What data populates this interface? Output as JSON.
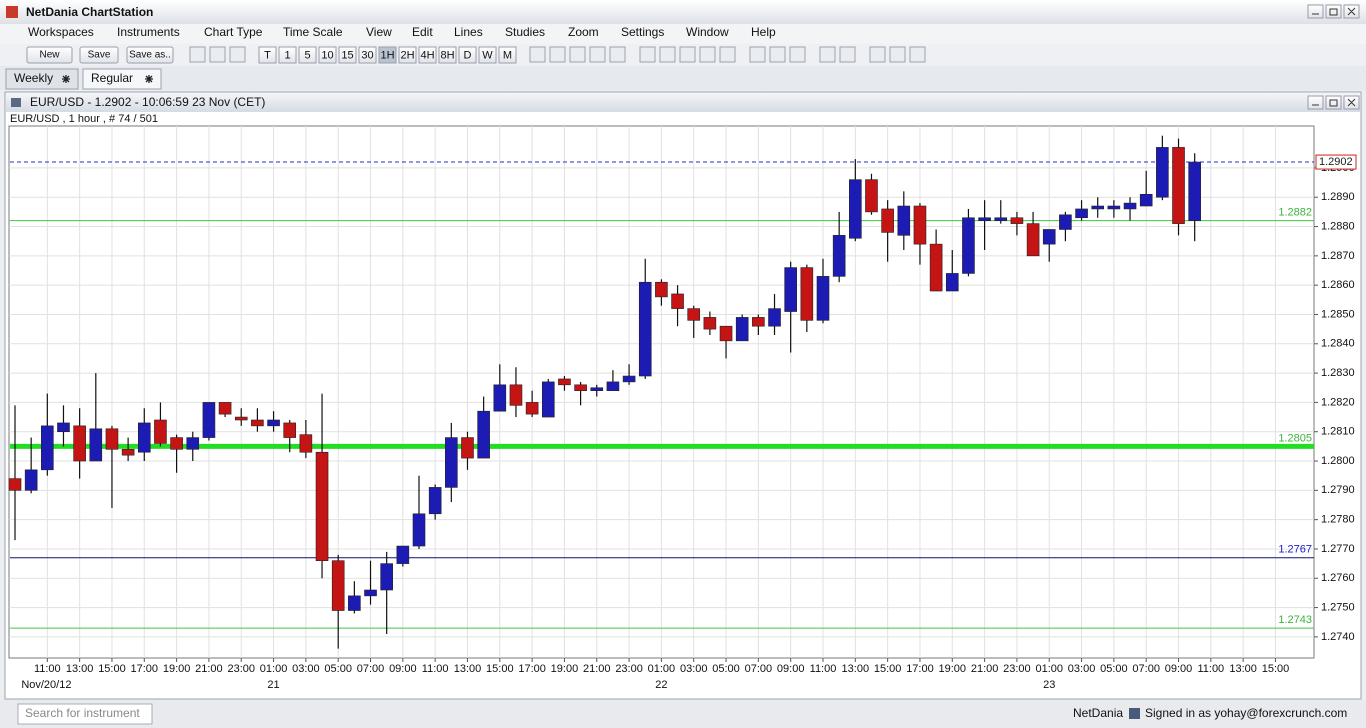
{
  "app": {
    "title": "NetDania ChartStation",
    "menu": [
      "Workspaces",
      "Instruments",
      "Chart Type",
      "Time Scale",
      "View",
      "Edit",
      "Lines",
      "Studies",
      "Zoom",
      "Settings",
      "Window",
      "Help"
    ],
    "buttons": [
      "New",
      "Save",
      "Save as.."
    ],
    "timeframes": [
      "T",
      "1",
      "5",
      "10",
      "15",
      "30",
      "1H",
      "2H",
      "4H",
      "8H",
      "D",
      "W",
      "M"
    ],
    "active_timeframe_index": 6,
    "tabs": [
      "Weekly",
      "Regular"
    ],
    "active_tab_index": 1,
    "status": {
      "search_placeholder": "Search for instrument",
      "brand": "NetDania",
      "signed_in": "Signed in as yohay@forexcrunch.com"
    }
  },
  "chart_data": {
    "type": "candlestick",
    "title": "EUR/USD - 1.2902 - 10:06:59  23 Nov (CET)",
    "subtitle": "EUR/USD , 1 hour , # 74 / 501",
    "up_color": "#1c1cb4",
    "down_color": "#c41414",
    "grid": true,
    "open": [
      1.2794,
      1.279,
      1.2797,
      1.281,
      1.2812,
      1.28,
      1.2811,
      1.2804,
      1.2803,
      1.2814,
      1.2808,
      1.2804,
      1.2808,
      1.282,
      1.2815,
      1.2814,
      1.2812,
      1.2813,
      1.2809,
      1.2803,
      1.2766,
      1.2749,
      1.2754,
      1.2756,
      1.2765,
      1.2771,
      1.2782,
      1.2791,
      1.2808,
      1.2801,
      1.2817,
      1.2826,
      1.282,
      1.2815,
      1.2828,
      1.2826,
      1.2824,
      1.2824,
      1.2827,
      1.2829,
      1.2861,
      1.2857,
      1.2852,
      1.2849,
      1.2846,
      1.2841,
      1.2849,
      1.2846,
      1.2851,
      1.2866,
      1.2848,
      1.2863,
      1.2876,
      1.2896,
      1.2886,
      1.2877,
      1.2887,
      1.2874,
      1.2858,
      1.2864,
      1.2882,
      1.2882,
      1.2883,
      1.2881,
      1.2874,
      1.2879,
      1.2883,
      1.2886,
      1.2886,
      1.2886,
      1.2887,
      1.289,
      1.2907,
      1.2882
    ],
    "high": [
      1.2819,
      1.2808,
      1.2823,
      1.2819,
      1.2818,
      1.283,
      1.2812,
      1.2808,
      1.2818,
      1.282,
      1.2809,
      1.281,
      1.282,
      1.282,
      1.2818,
      1.2818,
      1.2817,
      1.2814,
      1.2814,
      1.2823,
      1.2768,
      1.2759,
      1.2766,
      1.2769,
      1.2771,
      1.2795,
      1.2792,
      1.2813,
      1.281,
      1.2822,
      1.2833,
      1.2832,
      1.2824,
      1.2828,
      1.2829,
      1.2827,
      1.2826,
      1.2831,
      1.2833,
      1.2869,
      1.2862,
      1.286,
      1.2853,
      1.2851,
      1.2846,
      1.285,
      1.285,
      1.2857,
      1.2868,
      1.2867,
      1.2869,
      1.2885,
      1.2903,
      1.2898,
      1.2889,
      1.2892,
      1.2888,
      1.2879,
      1.2872,
      1.2886,
      1.2889,
      1.2889,
      1.2885,
      1.2885,
      1.2879,
      1.2885,
      1.2889,
      1.289,
      1.2889,
      1.289,
      1.2899,
      1.2911,
      1.291,
      1.2905
    ],
    "low": [
      1.2773,
      1.2789,
      1.2795,
      1.2805,
      1.2794,
      1.28,
      1.2784,
      1.28,
      1.28,
      1.2805,
      1.2796,
      1.28,
      1.2807,
      1.2815,
      1.2812,
      1.281,
      1.281,
      1.2803,
      1.2801,
      1.276,
      1.2736,
      1.2748,
      1.2751,
      1.2741,
      1.2764,
      1.277,
      1.278,
      1.2786,
      1.2797,
      1.2801,
      1.2817,
      1.2815,
      1.2815,
      1.2815,
      1.2824,
      1.2819,
      1.2822,
      1.2824,
      1.2826,
      1.2828,
      1.2853,
      1.2846,
      1.2842,
      1.2843,
      1.2835,
      1.2841,
      1.2843,
      1.2843,
      1.2837,
      1.2844,
      1.2847,
      1.2861,
      1.2875,
      1.2884,
      1.2868,
      1.2872,
      1.2867,
      1.2858,
      1.2858,
      1.2863,
      1.2872,
      1.2881,
      1.2877,
      1.287,
      1.2868,
      1.2875,
      1.2882,
      1.2883,
      1.2883,
      1.2882,
      1.2887,
      1.2889,
      1.2877,
      1.2875
    ],
    "close": [
      1.279,
      1.2797,
      1.2812,
      1.2813,
      1.28,
      1.2811,
      1.2804,
      1.2802,
      1.2813,
      1.2806,
      1.2804,
      1.2808,
      1.282,
      1.2816,
      1.2814,
      1.2812,
      1.2814,
      1.2808,
      1.2803,
      1.2766,
      1.2749,
      1.2754,
      1.2756,
      1.2765,
      1.2771,
      1.2782,
      1.2791,
      1.2808,
      1.2801,
      1.2817,
      1.2826,
      1.2819,
      1.2816,
      1.2827,
      1.2826,
      1.2824,
      1.2825,
      1.2827,
      1.2829,
      1.2861,
      1.2856,
      1.2852,
      1.2848,
      1.2845,
      1.2841,
      1.2849,
      1.2846,
      1.2852,
      1.2866,
      1.2848,
      1.2863,
      1.2877,
      1.2896,
      1.2885,
      1.2878,
      1.2887,
      1.2874,
      1.2858,
      1.2864,
      1.2883,
      1.2883,
      1.2883,
      1.2881,
      1.287,
      1.2879,
      1.2884,
      1.2886,
      1.2887,
      1.2887,
      1.2888,
      1.2891,
      1.2907,
      1.2881,
      1.2902
    ],
    "x_tick_labels": [
      "11:00",
      "13:00",
      "15:00",
      "17:00",
      "19:00",
      "21:00",
      "23:00",
      "01:00",
      "03:00",
      "05:00",
      "07:00",
      "09:00",
      "11:00",
      "13:00",
      "15:00",
      "17:00",
      "19:00",
      "21:00",
      "23:00",
      "01:00",
      "03:00",
      "05:00",
      "07:00",
      "09:00",
      "11:00",
      "13:00",
      "15:00",
      "17:00",
      "19:00",
      "21:00",
      "23:00",
      "01:00",
      "03:00",
      "05:00",
      "07:00",
      "09:00",
      "11:00",
      "13:00",
      "15:00"
    ],
    "date_labels": [
      "Nov/20/12",
      "21",
      "22",
      "23"
    ],
    "ylim": [
      1.27328,
      1.29143
    ],
    "yticks": [
      {
        "value": 1.274,
        "label": "1.2740"
      },
      {
        "value": 1.275,
        "label": "1.2750"
      },
      {
        "value": 1.276,
        "label": "1.2760"
      },
      {
        "value": 1.277,
        "label": "1.2770"
      },
      {
        "value": 1.278,
        "label": "1.2780"
      },
      {
        "value": 1.279,
        "label": "1.2790"
      },
      {
        "value": 1.28,
        "label": "1.2800"
      },
      {
        "value": 1.281,
        "label": "1.2810"
      },
      {
        "value": 1.282,
        "label": "1.2820"
      },
      {
        "value": 1.283,
        "label": "1.2830"
      },
      {
        "value": 1.284,
        "label": "1.2840"
      },
      {
        "value": 1.285,
        "label": "1.2850"
      },
      {
        "value": 1.286,
        "label": "1.2860"
      },
      {
        "value": 1.287,
        "label": "1.2870"
      },
      {
        "value": 1.288,
        "label": "1.2880"
      },
      {
        "value": 1.289,
        "label": "1.2890"
      },
      {
        "value": 1.29,
        "label": "1.2900"
      }
    ],
    "price_lines": [
      {
        "value": 1.2902,
        "color": "#2a2ad0",
        "label_color": "#202020",
        "width": 1,
        "dash": true,
        "boxed": true
      },
      {
        "value": 1.2882,
        "color": "#3cc83c",
        "label_color": "#3cb43c",
        "width": 1
      },
      {
        "value": 1.2805,
        "color": "#22dd22",
        "label_color": "#3cb43c",
        "width": 5
      },
      {
        "value": 1.2767,
        "color": "#101070",
        "label_color": "#1c1cc8",
        "width": 1
      },
      {
        "value": 1.2743,
        "color": "#3cc83c",
        "label_color": "#3cb43c",
        "width": 1
      }
    ]
  }
}
